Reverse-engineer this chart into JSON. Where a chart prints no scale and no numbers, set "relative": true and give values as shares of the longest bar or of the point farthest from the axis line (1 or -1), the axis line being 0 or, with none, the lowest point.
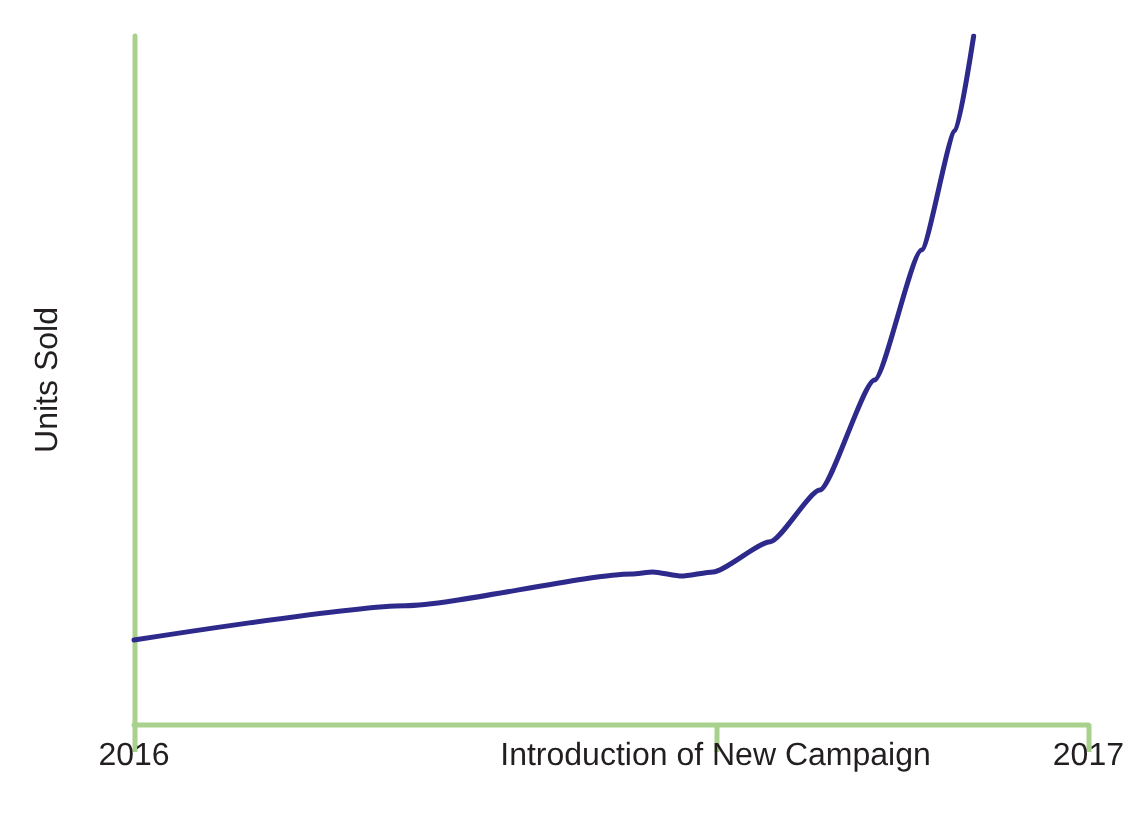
{
  "chart_data": {
    "type": "line",
    "relative": true,
    "ylabel": "Units Sold",
    "x": [
      "2016-01-01",
      "2016-04-14",
      "2016-07-10",
      "2016-07-18",
      "2016-07-29",
      "2016-08-10",
      "2016-09-01",
      "2016-09-20",
      "2016-10-11",
      "2016-10-29",
      "2016-11-11",
      "2016-11-18"
    ],
    "xlim": [
      "2016",
      "2017"
    ],
    "xticks": [
      "2016",
      {
        "value": "2016-08-11",
        "label": "Introduction of New Campaign"
      },
      "2017"
    ],
    "series": [
      {
        "color": "#2e2a8c",
        "values": [
          0.122,
          0.172,
          0.218,
          0.221,
          0.215,
          0.221,
          0.265,
          0.34,
          0.5,
          0.689,
          0.863,
          1.0
        ]
      }
    ],
    "marker": "none",
    "line_style": "solid"
  }
}
